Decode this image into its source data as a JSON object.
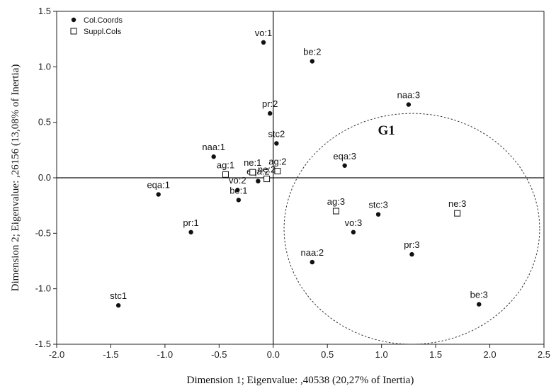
{
  "chart_data": {
    "type": "scatter",
    "xlabel": "Dimension 1; Eigenvalue: ,40538 (20,27% of Inertia)",
    "ylabel": "Dimension 2; Eigenvalue: ,26156 (13,08% of Inertia)",
    "xlim": [
      -2.0,
      2.5
    ],
    "ylim": [
      -1.5,
      1.5
    ],
    "xticks": [
      "-2.0",
      "-1.5",
      "-1.0",
      "-0.5",
      "0.0",
      "0.5",
      "1.0",
      "1.5",
      "2.0",
      "2.5"
    ],
    "yticks": [
      "1.5",
      "1.0",
      "0.5",
      "0.0",
      "-0.5",
      "-1.0",
      "-1.5"
    ],
    "grid": false,
    "reference_lines": {
      "x": 0,
      "y": 0
    },
    "legend_position": "top-left",
    "series": [
      {
        "name": "Col.Coords",
        "marker": "filled-circle",
        "points": [
          {
            "label": "vo:1",
            "x": -0.09,
            "y": 1.22
          },
          {
            "label": "be:2",
            "x": 0.36,
            "y": 1.05
          },
          {
            "label": "naa:3",
            "x": 1.25,
            "y": 0.66
          },
          {
            "label": "pr:2",
            "x": -0.03,
            "y": 0.58
          },
          {
            "label": "stc2",
            "x": 0.03,
            "y": 0.31
          },
          {
            "label": "naa:1",
            "x": -0.55,
            "y": 0.19
          },
          {
            "label": "eqa:3",
            "x": 0.66,
            "y": 0.11
          },
          {
            "label": "eqa:2",
            "x": -0.14,
            "y": -0.03
          },
          {
            "label": "vo:2",
            "x": -0.33,
            "y": -0.11
          },
          {
            "label": "be:1",
            "x": -0.32,
            "y": -0.2
          },
          {
            "label": "eqa:1",
            "x": -1.06,
            "y": -0.15
          },
          {
            "label": "stc:3",
            "x": 0.97,
            "y": -0.33
          },
          {
            "label": "vo:3",
            "x": 0.74,
            "y": -0.49
          },
          {
            "label": "pr:1",
            "x": -0.76,
            "y": -0.49
          },
          {
            "label": "naa:2",
            "x": 0.36,
            "y": -0.76
          },
          {
            "label": "pr:3",
            "x": 1.28,
            "y": -0.69
          },
          {
            "label": "be:3",
            "x": 1.9,
            "y": -1.14
          },
          {
            "label": "stc1",
            "x": -1.43,
            "y": -1.15
          }
        ]
      },
      {
        "name": "Suppl.Cols",
        "marker": "open-square",
        "points": [
          {
            "label": "ag:1",
            "x": -0.44,
            "y": 0.03
          },
          {
            "label": "ne:1",
            "x": -0.19,
            "y": 0.05
          },
          {
            "label": "ag:2",
            "x": 0.04,
            "y": 0.06
          },
          {
            "label": "ne:2",
            "x": -0.06,
            "y": -0.01
          },
          {
            "label": "ag:3",
            "x": 0.58,
            "y": -0.3
          },
          {
            "label": "ne:3",
            "x": 1.7,
            "y": -0.32
          }
        ]
      }
    ],
    "annotations": [
      {
        "text": "G1",
        "type": "dashed-ellipse",
        "center": [
          1.28,
          -0.46
        ],
        "radii": [
          1.18,
          1.04
        ]
      }
    ]
  }
}
